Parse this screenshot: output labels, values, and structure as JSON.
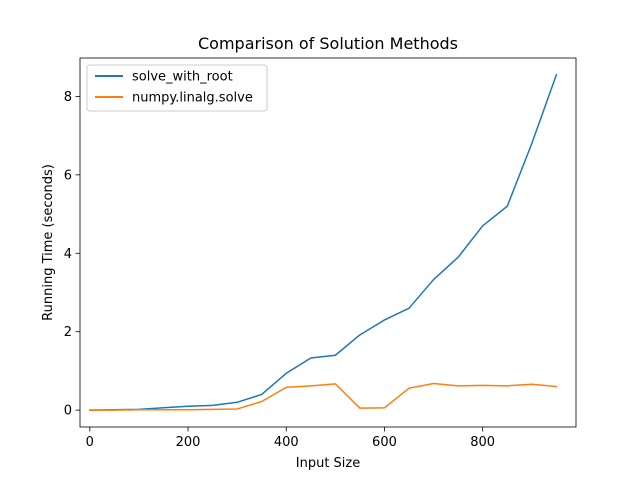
{
  "chart_data": {
    "type": "line",
    "title": "Comparison of Solution Methods",
    "xlabel": "Input Size",
    "ylabel": "Running Time (seconds)",
    "xlim": [
      -20,
      990
    ],
    "ylim": [
      -0.43,
      8.98
    ],
    "xticks": [
      0,
      200,
      400,
      600,
      800
    ],
    "yticks": [
      0,
      2,
      4,
      6,
      8
    ],
    "grid": false,
    "legend_position": "top-left",
    "x": [
      0,
      50,
      100,
      150,
      200,
      250,
      300,
      350,
      400,
      450,
      500,
      550,
      600,
      650,
      700,
      750,
      800,
      850,
      900,
      950
    ],
    "series": [
      {
        "name": "solve_with_root",
        "color": "#1f77b4",
        "values": [
          0.0,
          0.01,
          0.02,
          0.06,
          0.1,
          0.12,
          0.2,
          0.4,
          0.94,
          1.33,
          1.4,
          1.92,
          2.3,
          2.6,
          3.33,
          3.9,
          4.7,
          5.2,
          6.8,
          8.55
        ]
      },
      {
        "name": "numpy.linalg.solve",
        "color": "#ff7f0e",
        "values": [
          0.0,
          0.0,
          0.01,
          0.01,
          0.01,
          0.02,
          0.03,
          0.22,
          0.58,
          0.62,
          0.67,
          0.05,
          0.06,
          0.56,
          0.68,
          0.62,
          0.63,
          0.62,
          0.66,
          0.6
        ]
      }
    ]
  }
}
